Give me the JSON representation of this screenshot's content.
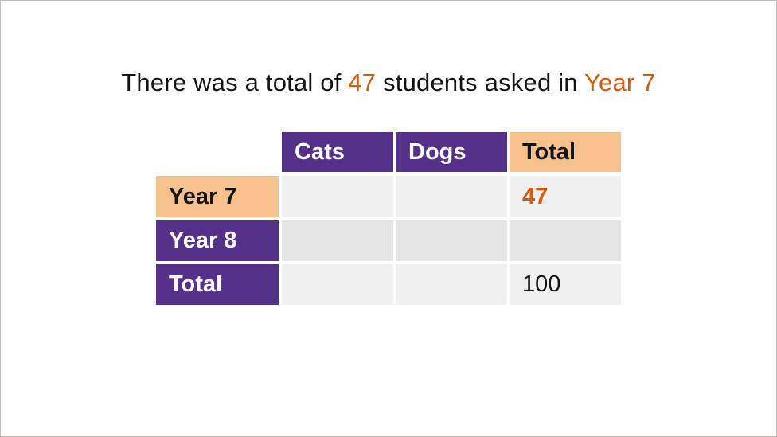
{
  "headline": {
    "part1": "There was a total of ",
    "value": "47",
    "part2": " students asked in ",
    "year": "Year 7"
  },
  "table": {
    "columns": [
      "Cats",
      "Dogs",
      "Total"
    ],
    "rows": [
      {
        "label": "Year 7",
        "cells": [
          "",
          "",
          "47"
        ]
      },
      {
        "label": "Year 8",
        "cells": [
          "",
          "",
          ""
        ]
      },
      {
        "label": "Total",
        "cells": [
          "",
          "",
          "100"
        ]
      }
    ]
  },
  "colors": {
    "purple": "#55318a",
    "peach": "#f6c18c",
    "orange": "#d65a0a",
    "cell_light": "#f0f0f0",
    "cell_mid": "#e4e4e4"
  }
}
